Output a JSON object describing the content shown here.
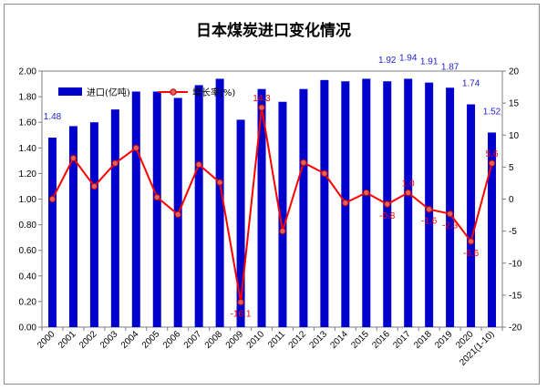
{
  "chart_data": {
    "type": "bar+line",
    "title": "日本煤炭进口变化情况",
    "categories": [
      "2000",
      "2001",
      "2002",
      "2003",
      "2004",
      "2005",
      "2006",
      "2007",
      "2008",
      "2009",
      "2010",
      "2011",
      "2012",
      "2013",
      "2014",
      "2015",
      "2016",
      "2017",
      "2018",
      "2019",
      "2020",
      "2021(1-10)"
    ],
    "series": [
      {
        "name": "进口(亿吨)",
        "type": "bar",
        "axis": "left",
        "color": "#0000cc",
        "values": [
          1.48,
          1.57,
          1.6,
          1.7,
          1.84,
          1.84,
          1.79,
          1.89,
          1.94,
          1.62,
          1.86,
          1.76,
          1.86,
          1.93,
          1.92,
          1.94,
          1.92,
          1.94,
          1.91,
          1.87,
          1.74,
          1.52
        ]
      },
      {
        "name": "增长率(%)",
        "type": "line",
        "axis": "right",
        "color": "#ff0000",
        "values": [
          0.0,
          6.4,
          2.0,
          5.6,
          8.0,
          0.3,
          -2.4,
          5.4,
          2.6,
          -16.1,
          14.3,
          -5.0,
          5.7,
          4.0,
          -0.6,
          1.0,
          -0.8,
          1.0,
          -1.6,
          -2.3,
          -6.6,
          5.6
        ]
      }
    ],
    "bar_labels": [
      {
        "index": 0,
        "text": "1.48"
      },
      {
        "index": 16,
        "text": "1.92"
      },
      {
        "index": 17,
        "text": "1.94"
      },
      {
        "index": 18,
        "text": "1.91"
      },
      {
        "index": 19,
        "text": "1.87"
      },
      {
        "index": 20,
        "text": "1.74"
      },
      {
        "index": 21,
        "text": "1.52"
      }
    ],
    "line_labels": [
      {
        "index": 9,
        "text": "-16.1"
      },
      {
        "index": 10,
        "text": "14.3"
      },
      {
        "index": 16,
        "text": "-0.8"
      },
      {
        "index": 17,
        "text": "1.0"
      },
      {
        "index": 18,
        "text": "-1.6"
      },
      {
        "index": 19,
        "text": "-2.3"
      },
      {
        "index": 20,
        "text": "-6.6"
      },
      {
        "index": 21,
        "text": "5.6"
      }
    ],
    "y_left": {
      "min": 0,
      "max": 2.0,
      "step": 0.2,
      "ticks": [
        "0.00",
        "0.20",
        "0.40",
        "0.60",
        "0.80",
        "1.00",
        "1.20",
        "1.40",
        "1.60",
        "1.80",
        "2.00"
      ]
    },
    "y_right": {
      "min": -20,
      "max": 20,
      "step": 5,
      "ticks": [
        "-20",
        "-15",
        "-10",
        "-5",
        "0",
        "5",
        "10",
        "15",
        "20"
      ]
    },
    "legend": {
      "position": "top-left",
      "items": [
        "进口(亿吨)",
        "增长率(%)"
      ]
    },
    "grid": false
  }
}
